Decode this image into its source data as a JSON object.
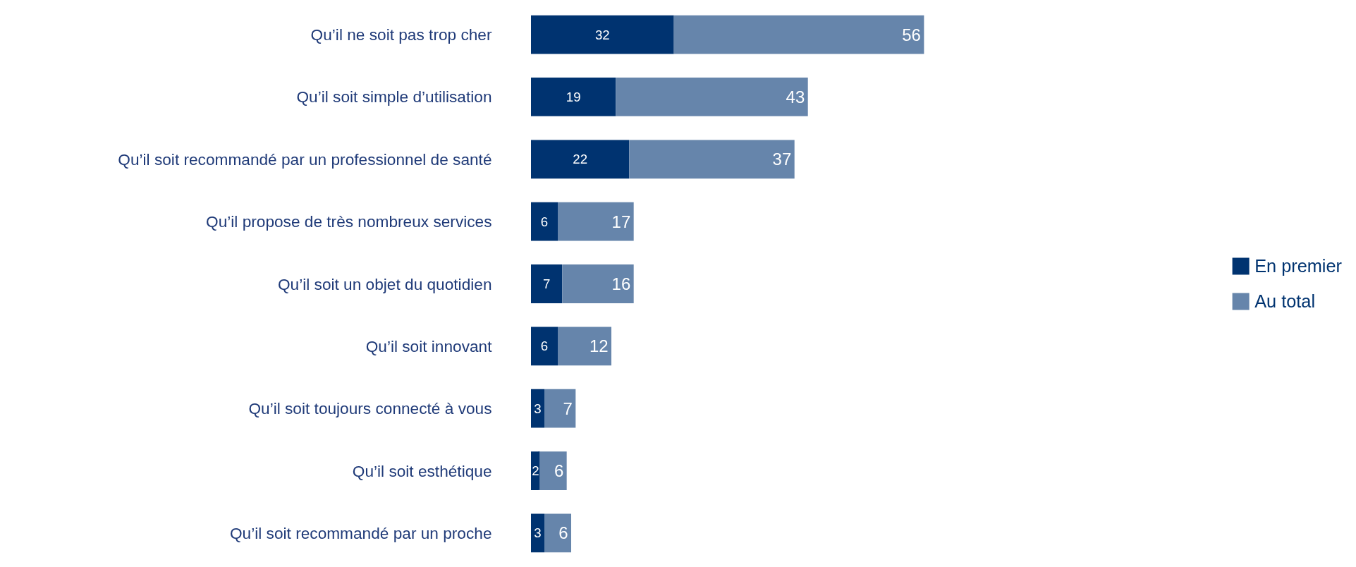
{
  "chart_data": {
    "type": "bar",
    "orientation": "horizontal",
    "stacked": true,
    "data_labels": true,
    "grid": false,
    "legend": "right",
    "tick_labels": "y",
    "categories": [
      "Qu’il ne soit pas trop cher",
      "Qu’il soit simple d’utilisation",
      "Qu’il soit recommandé par un professionnel de santé",
      "Qu’il propose de très nombreux services",
      "Qu’il soit un objet du quotidien",
      "Qu’il soit innovant",
      "Qu’il soit toujours connecté à vous",
      "Qu’il soit esthétique",
      "Qu’il soit recommandé par un proche"
    ],
    "series": [
      {
        "name": "En premier",
        "color": "#003370",
        "values": [
          32,
          19,
          22,
          6,
          7,
          6,
          3,
          2,
          3
        ]
      },
      {
        "name": "Au total",
        "color": "#6685ab",
        "values": [
          56,
          43,
          37,
          17,
          16,
          12,
          7,
          6,
          6
        ]
      }
    ]
  }
}
